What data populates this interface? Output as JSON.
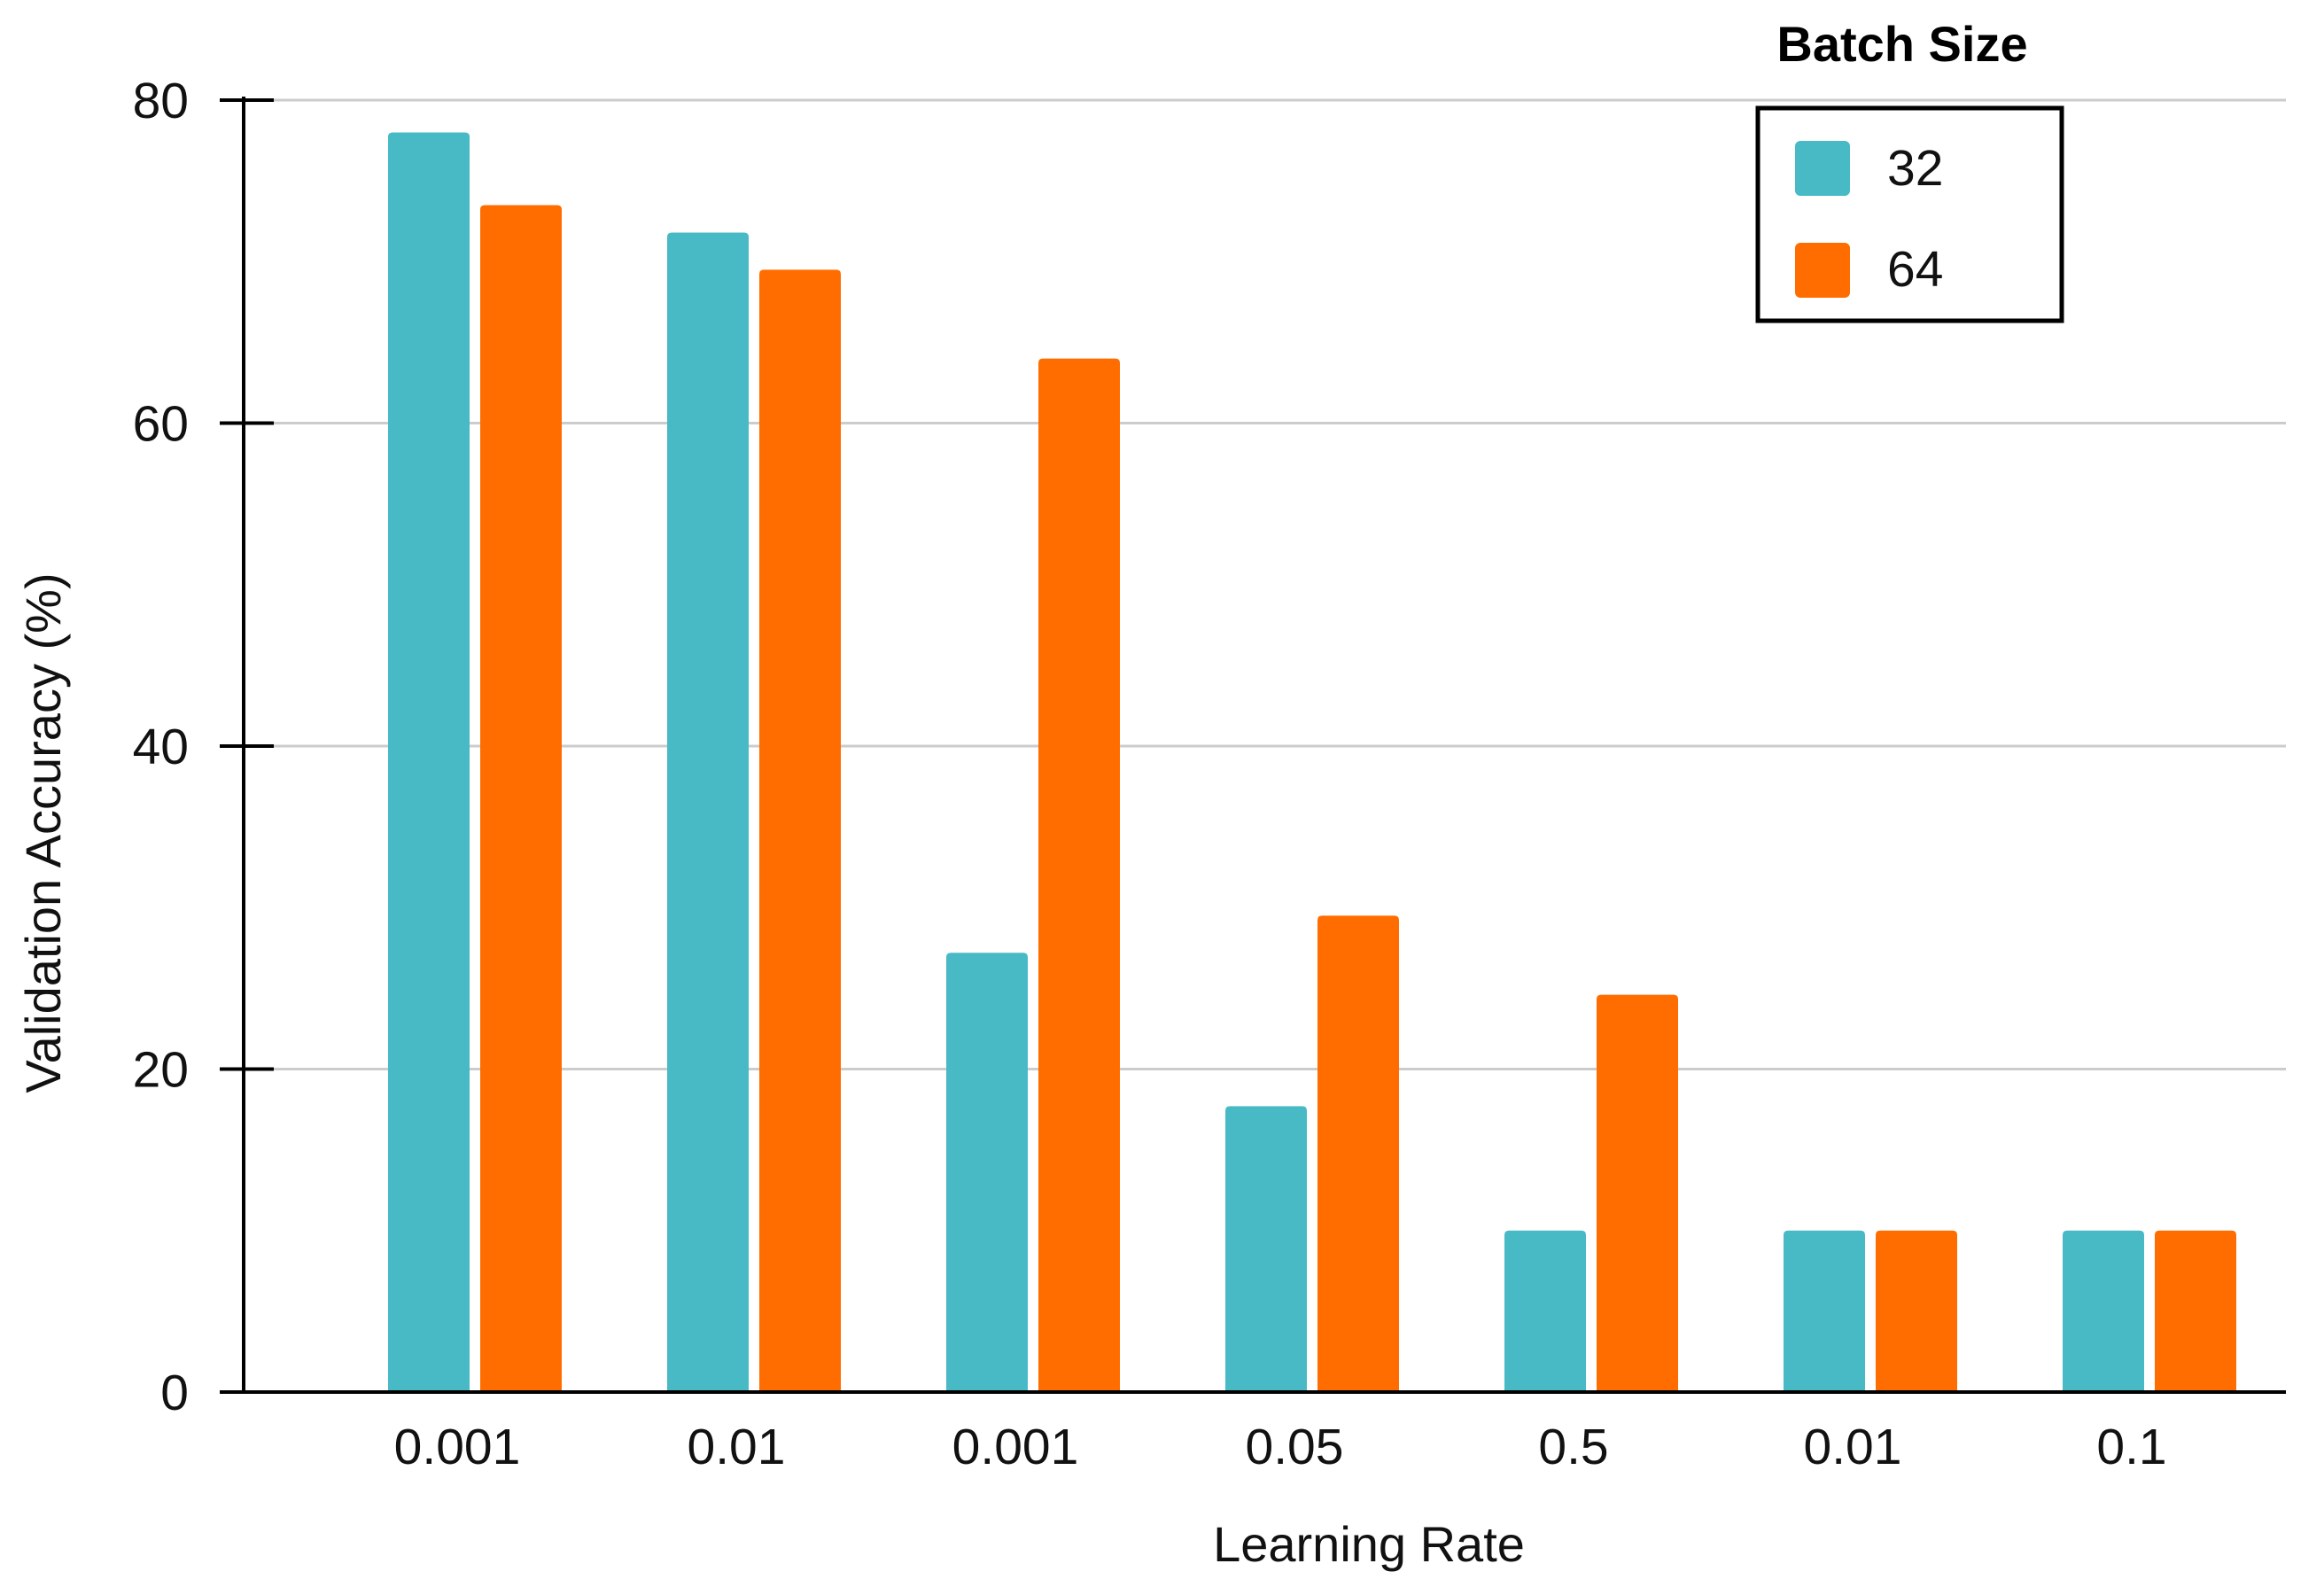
{
  "chart_data": {
    "type": "bar",
    "title": "",
    "xlabel": "Learning Rate",
    "ylabel": "Validation Accuracy (%)",
    "ylim": [
      0,
      80
    ],
    "yticks": [
      0,
      20,
      40,
      60,
      80
    ],
    "grid": true,
    "categories": [
      "0.001",
      "0.01",
      "0.001",
      "0.05",
      "0.5",
      "0.01",
      "0.1"
    ],
    "legend": {
      "title": "Batch Size",
      "placement": "top-right"
    },
    "series": [
      {
        "name": "32",
        "color": "#48bac6",
        "values": [
          78,
          71.8,
          27.2,
          17.7,
          10,
          10,
          10
        ]
      },
      {
        "name": "64",
        "color": "#ff6d00",
        "values": [
          73.5,
          69.5,
          64,
          29.5,
          24.6,
          10,
          10
        ]
      }
    ]
  }
}
